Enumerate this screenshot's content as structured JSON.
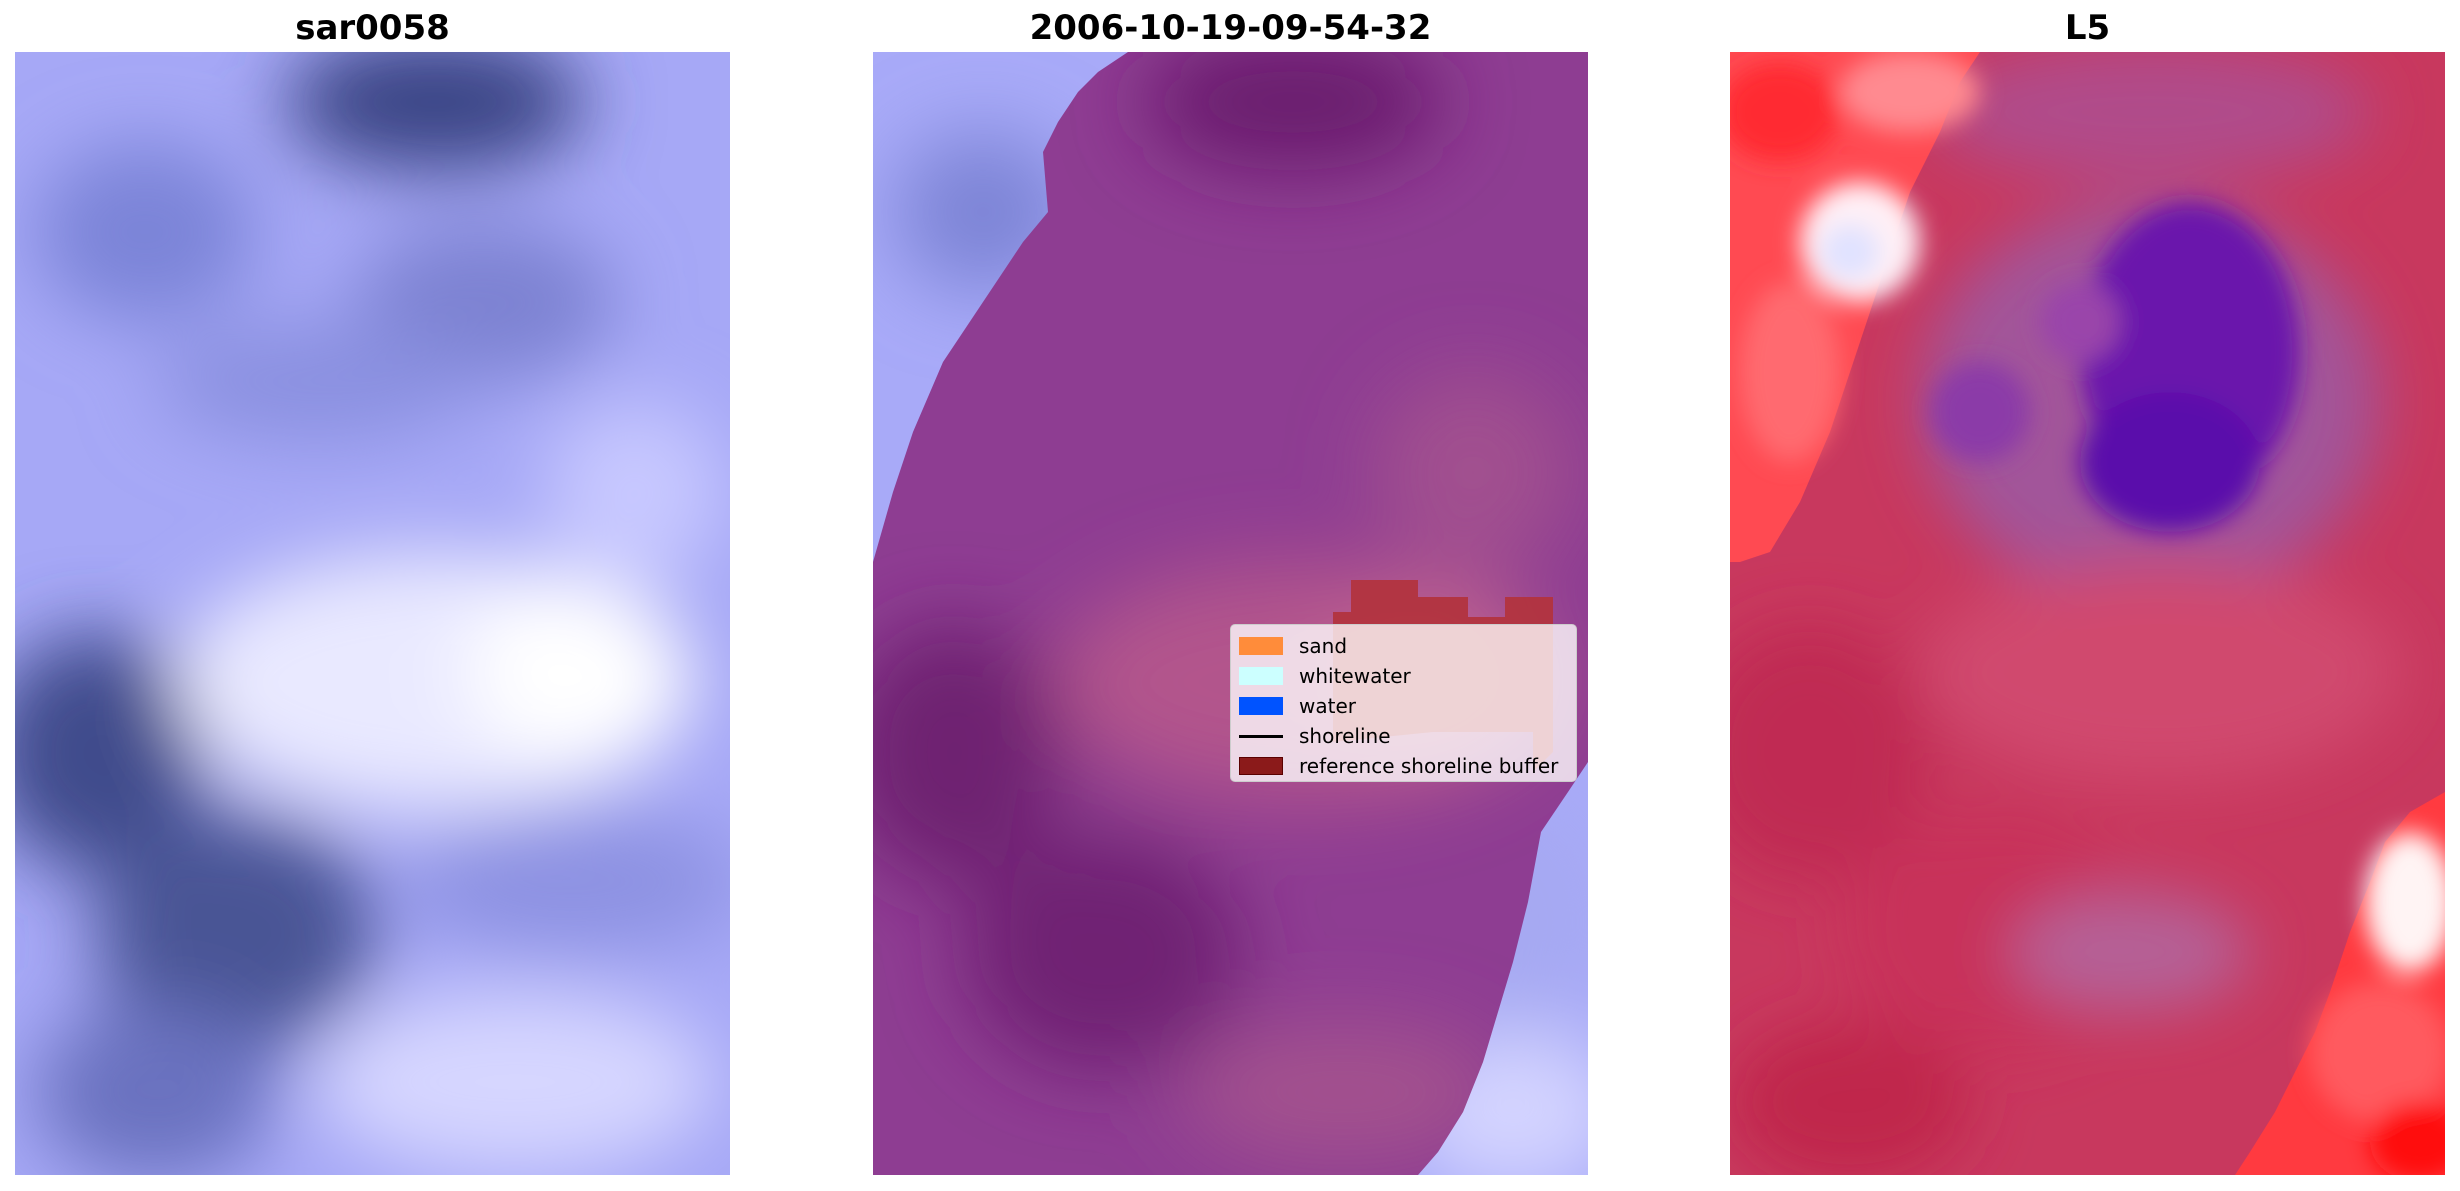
{
  "panels": [
    {
      "title": "sar0058"
    },
    {
      "title": "2006-10-19-09-54-32"
    },
    {
      "title": "L5"
    }
  ],
  "legend": {
    "items": [
      {
        "label": "sand",
        "color": "#ff8c3a",
        "kind": "patch"
      },
      {
        "label": "whitewater",
        "color": "#ccffff",
        "kind": "patch"
      },
      {
        "label": "water",
        "color": "#0053ff",
        "kind": "patch"
      },
      {
        "label": "shoreline",
        "color": "#000000",
        "kind": "line"
      },
      {
        "label": "reference shoreline buffer",
        "color": "#8b1a1a",
        "kind": "patch",
        "edge": "#5a0000"
      }
    ]
  },
  "colors": {
    "water_light": "#b4b4ff",
    "water_dark": "#3f4a8e",
    "land_overlay": "#8a3a8f",
    "buffer": "#b03040",
    "index_low": "#5a10a8",
    "index_mid": "#c43a5a",
    "index_high": "#ff1a1a"
  }
}
